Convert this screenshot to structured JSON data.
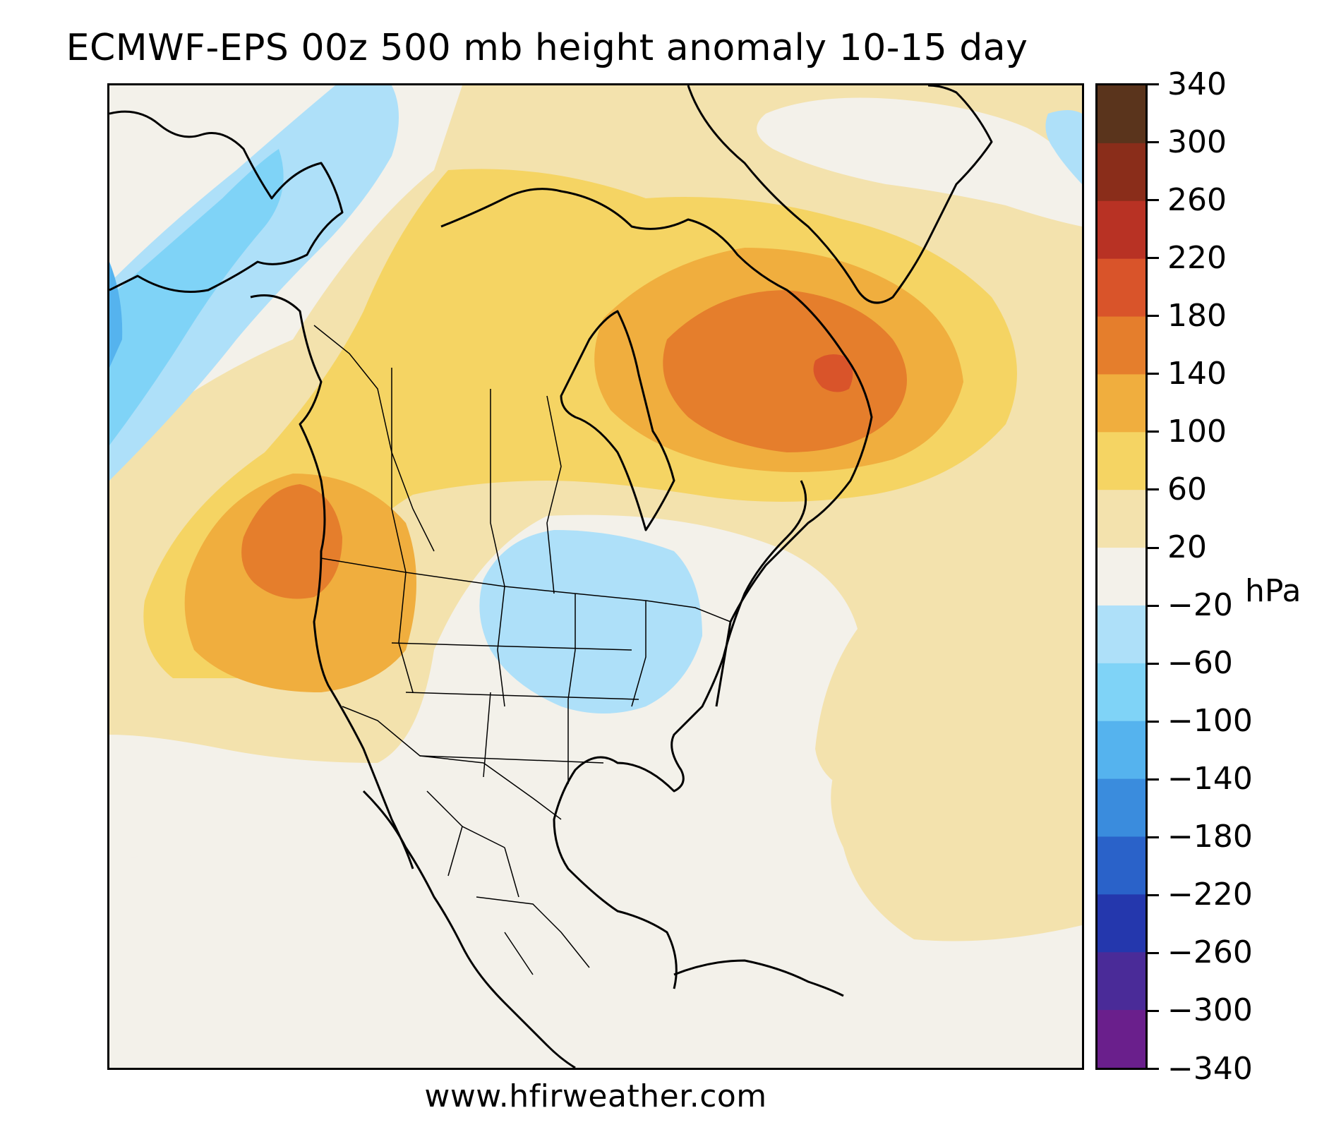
{
  "title": "ECMWF-EPS 00z 500 mb height anomaly 10-15 day",
  "credit": "www.hfirweather.com",
  "colorbar": {
    "unit": "hPa",
    "levels": [
      -340,
      -300,
      -260,
      -220,
      -180,
      -140,
      -100,
      -60,
      -20,
      20,
      60,
      100,
      140,
      180,
      220,
      260,
      300,
      340
    ],
    "tick_labels": [
      "340",
      "300",
      "260",
      "220",
      "180",
      "140",
      "100",
      "60",
      "20",
      "−20",
      "−60",
      "−100",
      "−140",
      "−180",
      "−220",
      "−260",
      "−300",
      "−340"
    ],
    "colors": [
      "#6a1f8c",
      "#4a2b98",
      "#2437ad",
      "#2a62c9",
      "#3a8cdd",
      "#55b3ee",
      "#7fd3f7",
      "#aee0f9",
      "#f3f1ea",
      "#f3e2ad",
      "#f5d463",
      "#f0ae3e",
      "#e57e2c",
      "#d9542a",
      "#b83224",
      "#8a2d1a",
      "#5a341c"
    ]
  },
  "map": {
    "variable": "500 mb height anomaly",
    "region": "North America",
    "anomaly_features": [
      {
        "name": "ridge-baffin-labrador",
        "sign": "positive",
        "peak_range": [
          140,
          180
        ]
      },
      {
        "name": "ridge-pacific-northwest-offshore",
        "sign": "positive",
        "peak_range": [
          140,
          180
        ]
      },
      {
        "name": "trough-alaska-bering",
        "sign": "negative",
        "peak_range": [
          -140,
          -100
        ]
      },
      {
        "name": "trough-central-us",
        "sign": "negative",
        "peak_range": [
          -60,
          -20
        ]
      },
      {
        "name": "trough-southeast-greenland",
        "sign": "negative",
        "peak_range": [
          -60,
          -20
        ]
      },
      {
        "name": "ridge-western-atlantic",
        "sign": "positive",
        "peak_range": [
          20,
          60
        ]
      }
    ]
  }
}
